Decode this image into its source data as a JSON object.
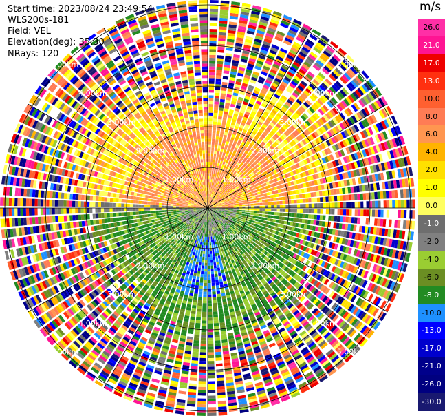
{
  "header": {
    "start_time": "Start time: 2023/08/24 23:49:54",
    "instrument": "WLS200s-181",
    "field": "Field: VEL",
    "elevation": "Elevation(deg): 35.30",
    "nrays": "NRays: 120"
  },
  "range_rings": {
    "labels": [
      "1.00km",
      "2.00km",
      "3.00km",
      "4.00km",
      "5.00km"
    ]
  },
  "colorbar": {
    "unit": "m/s",
    "ticks": [
      "26.0",
      "21.0",
      "17.0",
      "13.0",
      "10.0",
      "8.0",
      "6.0",
      "4.0",
      "2.0",
      "1.0",
      "0.0",
      "-1.0",
      "-2.0",
      "-4.0",
      "-6.0",
      "-8.0",
      "-10.0",
      "-13.0",
      "-17.0",
      "-21.0",
      "-26.0",
      "-30.0"
    ],
    "colors": [
      "#ff2fa6",
      "#ff1493",
      "#ee0000",
      "#ff3010",
      "#ff6030",
      "#ff7c55",
      "#ff9650",
      "#ffb400",
      "#ffe000",
      "#ffff00",
      "#ffff60",
      "#6e6e6e",
      "#808080",
      "#9acd32",
      "#6b8e23",
      "#228b22",
      "#1e90ff",
      "#0000ff",
      "#0000cd",
      "#00008b",
      "#000080",
      "#191970"
    ]
  }
}
